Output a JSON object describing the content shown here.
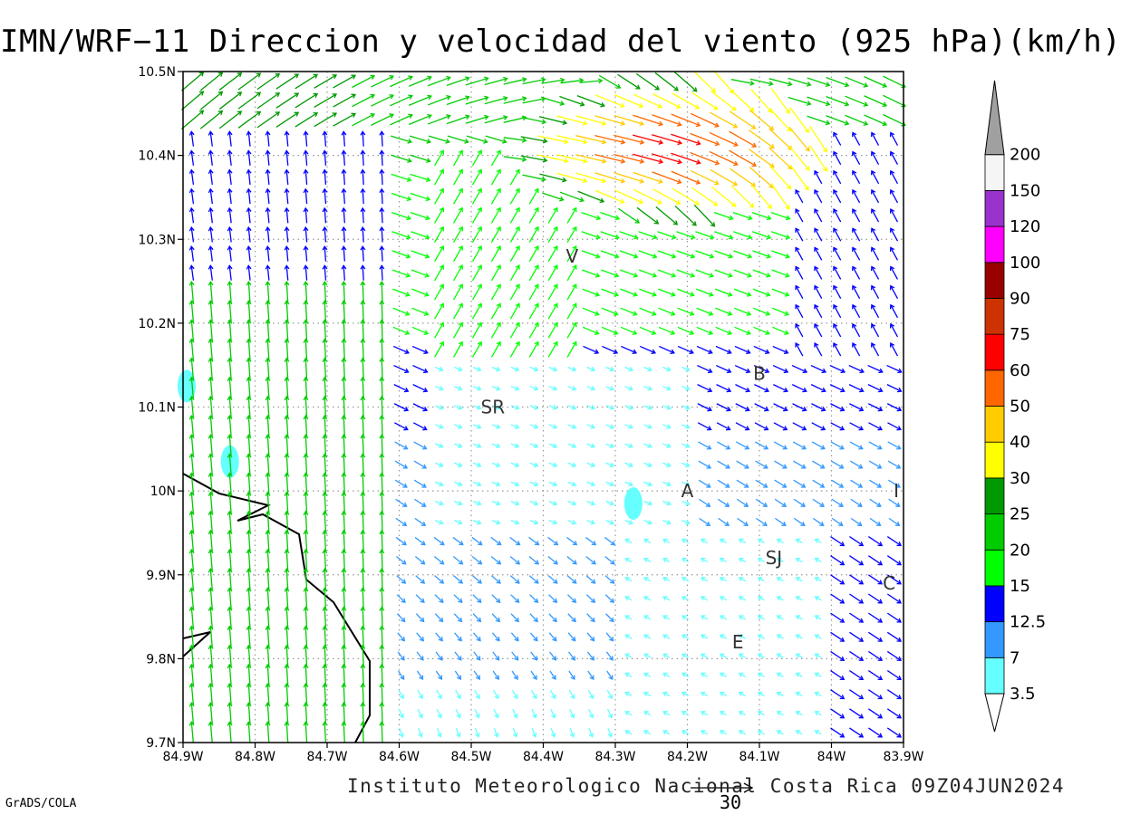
{
  "title": "IMN/WRF−11 Direccion y velocidad del viento (925 hPa)(km/h)",
  "footer": "Instituto Meteorologico Nacional Costa Rica 09Z04JUN2024",
  "credit": "GrADS/COLA",
  "reference_vector": {
    "label": "30",
    "speed_kmh": 30
  },
  "lat_ticks": [
    "10.5N",
    "10.4N",
    "10.3N",
    "10.2N",
    "10.1N",
    "10N",
    "9.9N",
    "9.8N",
    "9.7N"
  ],
  "lon_ticks": [
    "84.9W",
    "84.8W",
    "84.7W",
    "84.6W",
    "84.5W",
    "84.4W",
    "84.3W",
    "84.2W",
    "84.1W",
    "84W",
    "83.9W"
  ],
  "cities": [
    {
      "name": "V",
      "lon": -84.36,
      "lat": 10.28
    },
    {
      "name": "B",
      "lon": -84.1,
      "lat": 10.14
    },
    {
      "name": "SR",
      "lon": -84.47,
      "lat": 10.1
    },
    {
      "name": "A",
      "lon": -84.2,
      "lat": 10.0
    },
    {
      "name": "I",
      "lon": -83.91,
      "lat": 10.0
    },
    {
      "name": "SJ",
      "lon": -84.08,
      "lat": 9.92
    },
    {
      "name": "C",
      "lon": -83.92,
      "lat": 9.89
    },
    {
      "name": "E",
      "lon": -84.13,
      "lat": 9.82
    }
  ],
  "colorbar": {
    "colors": [
      "#66ffff",
      "#3399ff",
      "#0000ff",
      "#00ff00",
      "#00cc00",
      "#009900",
      "#ffff00",
      "#ffcc00",
      "#ff6600",
      "#ff0000",
      "#cc3300",
      "#990000",
      "#ff00ff",
      "#9933cc",
      "#f5f5f5",
      "#a0a0a0"
    ],
    "labels": [
      "3.5",
      "7",
      "12.5",
      "15",
      "20",
      "25",
      "30",
      "40",
      "50",
      "60",
      "75",
      "90",
      "100",
      "120",
      "150",
      "200"
    ]
  },
  "calm_patches": [
    {
      "lon": -84.895,
      "lat": 10.125,
      "color": "#66ffff"
    },
    {
      "lon": -84.835,
      "lat": 10.035,
      "color": "#66ffff"
    },
    {
      "lon": -84.275,
      "lat": 9.985,
      "color": "#66ffff"
    }
  ]
}
